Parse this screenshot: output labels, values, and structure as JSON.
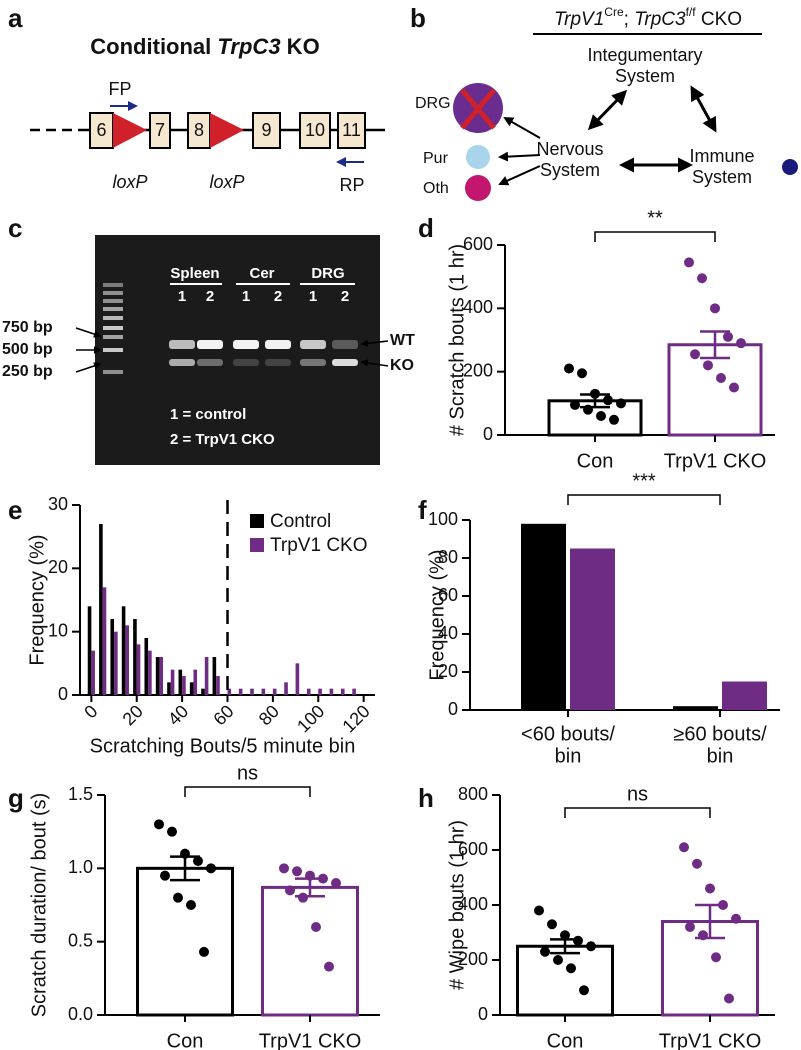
{
  "panels": {
    "a": {
      "letter": "a",
      "title": [
        "Conditional ",
        "TrpC3",
        " KO"
      ],
      "exons": [
        "6",
        "7",
        "8",
        "9",
        "10",
        "11"
      ],
      "loxp": [
        "loxP",
        "loxP"
      ],
      "fp": "FP",
      "rp": "RP"
    },
    "b": {
      "letter": "b",
      "title": [
        "TrpV1",
        "Cre",
        "; ",
        "TrpC3",
        "f/f",
        " CKO"
      ],
      "integumentary": [
        "Integumentary",
        "System"
      ],
      "nervous": [
        "Nervous",
        "System"
      ],
      "immune": [
        "Immune",
        "System"
      ],
      "cells": [
        "DRG",
        "Pur",
        "Oth"
      ]
    },
    "c": {
      "letter": "c",
      "tissues": [
        "Spleen",
        "Cer",
        "DRG"
      ],
      "lanes": [
        "1",
        "2",
        "1",
        "2",
        "1",
        "2"
      ],
      "markers": [
        "750 bp",
        "500 bp",
        "250 bp"
      ],
      "bands": [
        "WT",
        "KO"
      ],
      "key": [
        "1 = control",
        "2 = TrpV1 CKO"
      ]
    }
  },
  "chart_data": [
    {
      "panel": "d",
      "type": "bar",
      "ylabel": "# Scratch bouts (1 hr)",
      "categories": [
        "Con",
        "TrpV1 CKO"
      ],
      "colors": [
        "#000000",
        "#6f2c85"
      ],
      "values": [
        108,
        285
      ],
      "errors": [
        20,
        42
      ],
      "points": [
        [
          210,
          195,
          130,
          110,
          100,
          95,
          80,
          60,
          48
        ],
        [
          545,
          495,
          400,
          310,
          290,
          255,
          220,
          180,
          150
        ]
      ],
      "ylim": [
        0,
        600
      ],
      "yticks": [
        0,
        200,
        400,
        600
      ],
      "significance": "**"
    },
    {
      "panel": "e",
      "type": "numeric_bar",
      "ylabel": "Frequency (%)",
      "xlabel": "Scratching Bouts/5 minute bin",
      "x": [
        0,
        5,
        10,
        15,
        20,
        25,
        30,
        35,
        40,
        45,
        50,
        55,
        60,
        65,
        70,
        75,
        80,
        85,
        90,
        95,
        100,
        105,
        110,
        115,
        120
      ],
      "series": [
        {
          "name": "Control",
          "color": "#000000",
          "values": [
            14,
            27,
            12,
            14,
            12,
            9,
            6,
            2,
            4,
            2,
            1,
            6,
            0,
            0,
            0,
            0,
            0,
            0,
            0,
            0,
            0,
            0,
            0,
            0,
            0
          ]
        },
        {
          "name": "TrpV1 CKO",
          "color": "#6f2c85",
          "values": [
            7,
            17,
            10,
            11,
            8,
            7,
            6,
            4,
            3,
            4,
            6,
            3,
            1,
            1,
            1,
            1,
            1,
            2,
            5,
            1,
            1,
            1,
            1,
            1,
            0
          ]
        }
      ],
      "xlim": [
        -5,
        125
      ],
      "xticks": [
        0,
        20,
        40,
        60,
        80,
        100,
        120
      ],
      "ylim": [
        0,
        30
      ],
      "yticks": [
        0,
        10,
        20,
        30
      ],
      "threshold": 60
    },
    {
      "panel": "f",
      "type": "grouped_bar",
      "ylabel": "Frequency (%)",
      "categories": [
        [
          "<60 bouts/",
          "bin"
        ],
        [
          "≥60 bouts/",
          "bin"
        ]
      ],
      "series": [
        {
          "color": "#000000",
          "values": [
            98,
            2
          ]
        },
        {
          "color": "#6f2c85",
          "values": [
            85,
            15
          ]
        }
      ],
      "ylim": [
        0,
        100
      ],
      "yticks": [
        0,
        20,
        40,
        60,
        80,
        100
      ],
      "significance": "***"
    },
    {
      "panel": "g",
      "type": "bar",
      "ylabel": "Scratch duration/ bout (s)",
      "categories": [
        "Con",
        "TrpV1 CKO"
      ],
      "colors": [
        "#000000",
        "#6f2c85"
      ],
      "values": [
        1.0,
        0.87
      ],
      "errors": [
        0.08,
        0.06
      ],
      "points": [
        [
          1.3,
          1.25,
          1.1,
          1.05,
          1.0,
          0.95,
          0.8,
          0.75,
          0.43
        ],
        [
          1.0,
          0.98,
          0.95,
          0.93,
          0.9,
          0.85,
          0.8,
          0.6,
          0.33
        ]
      ],
      "ylim": [
        0,
        1.5
      ],
      "yticks": [
        {
          "value": 0,
          "label": "0.0"
        },
        0.5,
        {
          "value": 1,
          "label": "1.0"
        },
        1.5
      ],
      "significance": "ns"
    },
    {
      "panel": "h",
      "type": "bar",
      "ylabel": "# Wipe bouts (1 hr)",
      "categories": [
        "Con",
        "TrpV1 CKO"
      ],
      "colors": [
        "#000000",
        "#6f2c85"
      ],
      "values": [
        250,
        340
      ],
      "errors": [
        25,
        60
      ],
      "points": [
        [
          380,
          330,
          290,
          270,
          250,
          230,
          200,
          170,
          90
        ],
        [
          610,
          550,
          460,
          400,
          350,
          320,
          290,
          210,
          60
        ]
      ],
      "ylim": [
        0,
        800
      ],
      "yticks": [
        0,
        200,
        400,
        600,
        800
      ],
      "significance": "ns"
    }
  ]
}
